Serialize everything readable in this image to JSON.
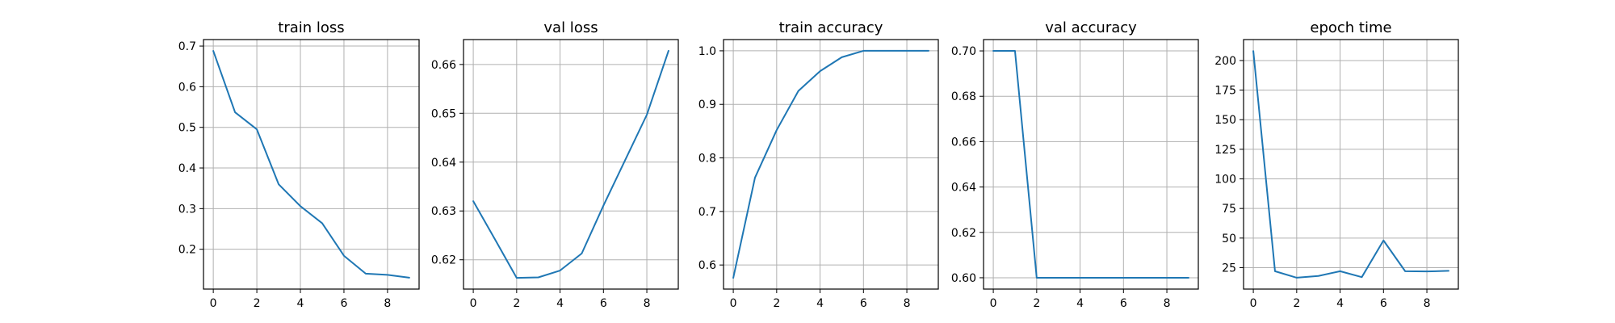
{
  "chart_data": [
    {
      "type": "line",
      "title": "train loss",
      "xlabel": "",
      "ylabel": "",
      "x": [
        0,
        1,
        2,
        3,
        4,
        5,
        6,
        7,
        8,
        9
      ],
      "series": [
        {
          "values": [
            0.688,
            0.537,
            0.495,
            0.36,
            0.306,
            0.264,
            0.184,
            0.14,
            0.137,
            0.13
          ],
          "color": "#1f77b4"
        }
      ],
      "xlim": [
        -0.45,
        9.45
      ],
      "ylim": [
        0.102,
        0.716
      ],
      "xticks": [
        0,
        2,
        4,
        6,
        8
      ],
      "yticks": [
        0.2,
        0.3,
        0.4,
        0.5,
        0.6,
        0.7
      ],
      "ytick_labels": [
        "0.2",
        "0.3",
        "0.4",
        "0.5",
        "0.6",
        "0.7"
      ],
      "grid": true
    },
    {
      "type": "line",
      "title": "val loss",
      "xlabel": "",
      "ylabel": "",
      "x": [
        0,
        1,
        2,
        3,
        4,
        5,
        6,
        7,
        8,
        9
      ],
      "series": [
        {
          "values": [
            0.632,
            0.6242,
            0.6163,
            0.6164,
            0.6178,
            0.6213,
            0.6311,
            0.6404,
            0.6497,
            0.6628
          ],
          "color": "#1f77b4"
        }
      ],
      "xlim": [
        -0.45,
        9.45
      ],
      "ylim": [
        0.614,
        0.6651
      ],
      "xticks": [
        0,
        2,
        4,
        6,
        8
      ],
      "yticks": [
        0.62,
        0.63,
        0.64,
        0.65,
        0.66
      ],
      "ytick_labels": [
        "0.62",
        "0.63",
        "0.64",
        "0.65",
        "0.66"
      ],
      "grid": true
    },
    {
      "type": "line",
      "title": "train accuracy",
      "xlabel": "",
      "ylabel": "",
      "x": [
        0,
        1,
        2,
        3,
        4,
        5,
        6,
        7,
        8,
        9
      ],
      "series": [
        {
          "values": [
            0.576,
            0.763,
            0.852,
            0.925,
            0.962,
            0.988,
            1.0,
            1.0,
            1.0,
            1.0
          ],
          "color": "#1f77b4"
        }
      ],
      "xlim": [
        -0.45,
        9.45
      ],
      "ylim": [
        0.555,
        1.021
      ],
      "xticks": [
        0,
        2,
        4,
        6,
        8
      ],
      "yticks": [
        0.6,
        0.7,
        0.8,
        0.9,
        1.0
      ],
      "ytick_labels": [
        "0.6",
        "0.7",
        "0.8",
        "0.9",
        "1.0"
      ],
      "grid": true
    },
    {
      "type": "line",
      "title": "val accuracy",
      "xlabel": "",
      "ylabel": "",
      "x": [
        0,
        1,
        2,
        3,
        4,
        5,
        6,
        7,
        8,
        9
      ],
      "series": [
        {
          "values": [
            0.7,
            0.7,
            0.6,
            0.6,
            0.6,
            0.6,
            0.6,
            0.6,
            0.6,
            0.6
          ],
          "color": "#1f77b4"
        }
      ],
      "xlim": [
        -0.45,
        9.45
      ],
      "ylim": [
        0.595,
        0.705
      ],
      "xticks": [
        0,
        2,
        4,
        6,
        8
      ],
      "yticks": [
        0.6,
        0.62,
        0.64,
        0.66,
        0.68,
        0.7
      ],
      "ytick_labels": [
        "0.60",
        "0.62",
        "0.64",
        "0.66",
        "0.68",
        "0.70"
      ],
      "grid": true
    },
    {
      "type": "line",
      "title": "epoch time",
      "xlabel": "",
      "ylabel": "",
      "x": [
        0,
        1,
        2,
        3,
        4,
        5,
        6,
        7,
        8,
        9
      ],
      "series": [
        {
          "values": [
            208,
            22,
            16.5,
            18,
            22,
            17,
            48,
            22,
            21.8,
            22.3
          ],
          "color": "#1f77b4"
        }
      ],
      "xlim": [
        -0.45,
        9.45
      ],
      "ylim": [
        6.9,
        217.7
      ],
      "xticks": [
        0,
        2,
        4,
        6,
        8
      ],
      "yticks": [
        25,
        50,
        75,
        100,
        125,
        150,
        175,
        200
      ],
      "ytick_labels": [
        "25",
        "50",
        "75",
        "100",
        "125",
        "150",
        "175",
        "200"
      ],
      "grid": true
    }
  ]
}
